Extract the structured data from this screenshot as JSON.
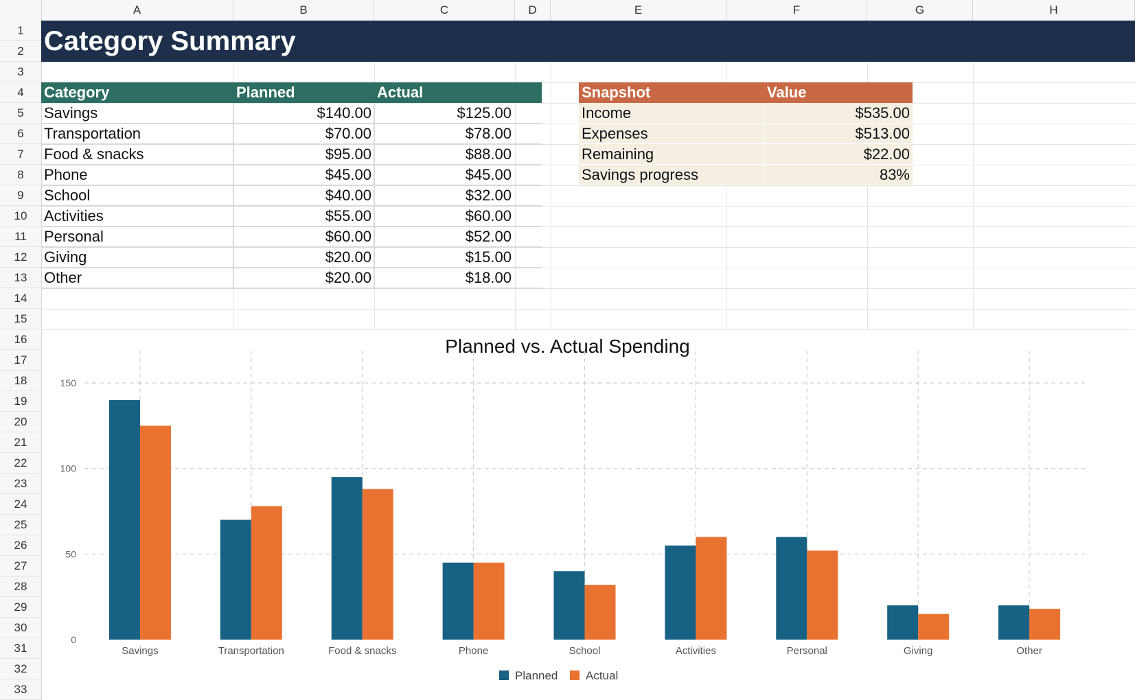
{
  "sheet": {
    "columns": [
      "A",
      "B",
      "C",
      "D",
      "E",
      "F",
      "G",
      "H"
    ],
    "rows": [
      "1",
      "2",
      "3",
      "4",
      "5",
      "6",
      "7",
      "8",
      "9",
      "10",
      "11",
      "12",
      "13",
      "14",
      "15",
      "16",
      "17",
      "18",
      "19",
      "20",
      "21",
      "22",
      "23",
      "24",
      "25",
      "26",
      "27",
      "28",
      "29",
      "30",
      "31",
      "32",
      "33"
    ]
  },
  "title": "Category Summary",
  "category_table": {
    "headers": {
      "category": "Category",
      "planned": "Planned",
      "actual": "Actual"
    },
    "header_color": "#2d6e63",
    "rows": [
      {
        "category": "Savings",
        "planned": "$140.00",
        "actual": "$125.00"
      },
      {
        "category": "Transportation",
        "planned": "$70.00",
        "actual": "$78.00"
      },
      {
        "category": "Food & snacks",
        "planned": "$95.00",
        "actual": "$88.00"
      },
      {
        "category": "Phone",
        "planned": "$45.00",
        "actual": "$45.00"
      },
      {
        "category": "School",
        "planned": "$40.00",
        "actual": "$32.00"
      },
      {
        "category": "Activities",
        "planned": "$55.00",
        "actual": "$60.00"
      },
      {
        "category": "Personal",
        "planned": "$60.00",
        "actual": "$52.00"
      },
      {
        "category": "Giving",
        "planned": "$20.00",
        "actual": "$15.00"
      },
      {
        "category": "Other",
        "planned": "$20.00",
        "actual": "$18.00"
      }
    ]
  },
  "snapshot_table": {
    "headers": {
      "label": "Snapshot",
      "value": "Value"
    },
    "header_color": "#c96844",
    "rows": [
      {
        "label": "Income",
        "value": "$535.00"
      },
      {
        "label": "Expenses",
        "value": "$513.00"
      },
      {
        "label": "Remaining",
        "value": "$22.00"
      },
      {
        "label": "Savings progress",
        "value": "83%"
      }
    ]
  },
  "chart_data": {
    "type": "bar",
    "title": "Planned vs. Actual Spending",
    "categories": [
      "Savings",
      "Transportation",
      "Food & snacks",
      "Phone",
      "School",
      "Activities",
      "Personal",
      "Giving",
      "Other"
    ],
    "series": [
      {
        "name": "Planned",
        "color": "#176184",
        "values": [
          140,
          70,
          95,
          45,
          40,
          55,
          60,
          20,
          20
        ]
      },
      {
        "name": "Actual",
        "color": "#ea7231",
        "values": [
          125,
          78,
          88,
          45,
          32,
          60,
          52,
          15,
          18
        ]
      }
    ],
    "ylim": [
      0,
      150
    ],
    "yticks": [
      0,
      50,
      100,
      150
    ],
    "grid": true,
    "legend": "bottom-center"
  }
}
